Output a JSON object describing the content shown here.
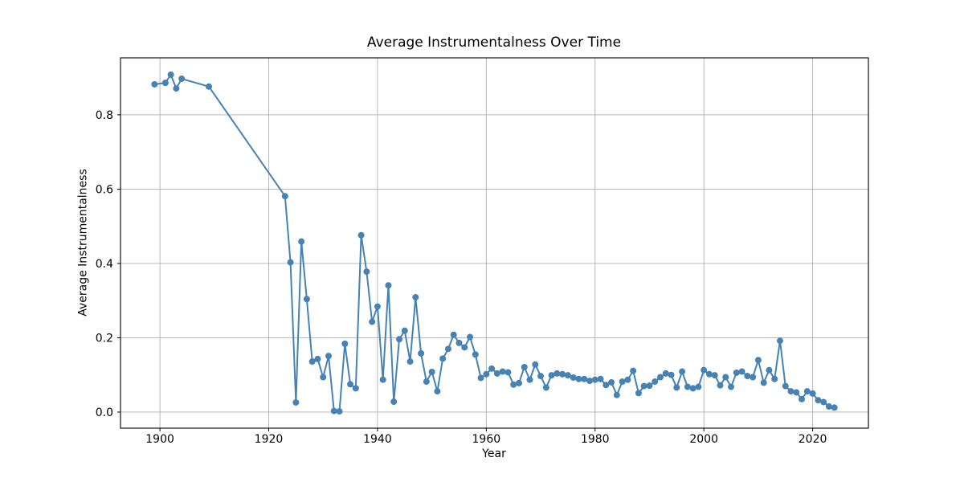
{
  "chart_data": {
    "type": "line",
    "title": "Average Instrumentalness Over Time",
    "xlabel": "Year",
    "ylabel": "Average Instrumentalness",
    "legend": null,
    "grid": true,
    "grid_color": "#b0b0b0",
    "line_color": "#4682b4",
    "marker": "circle",
    "marker_size_px": 8,
    "xlim": [
      1892.75,
      2030.25
    ],
    "ylim": [
      -0.0433,
      0.9533
    ],
    "x_ticks": [
      1900,
      1920,
      1940,
      1960,
      1980,
      2000,
      2020
    ],
    "y_ticks": [
      0.0,
      0.2,
      0.4,
      0.6,
      0.8
    ],
    "series": [
      {
        "name": "Average Instrumentalness",
        "points": [
          [
            1899,
            0.882
          ],
          [
            1901,
            0.886
          ],
          [
            1902,
            0.908
          ],
          [
            1903,
            0.871
          ],
          [
            1904,
            0.897
          ],
          [
            1909,
            0.876
          ],
          [
            1923,
            0.581
          ],
          [
            1924,
            0.403
          ],
          [
            1925,
            0.026
          ],
          [
            1926,
            0.459
          ],
          [
            1927,
            0.304
          ],
          [
            1928,
            0.136
          ],
          [
            1929,
            0.143
          ],
          [
            1930,
            0.094
          ],
          [
            1931,
            0.151
          ],
          [
            1932,
            0.003
          ],
          [
            1933,
            0.002
          ],
          [
            1934,
            0.184
          ],
          [
            1935,
            0.075
          ],
          [
            1936,
            0.064
          ],
          [
            1937,
            0.476
          ],
          [
            1938,
            0.378
          ],
          [
            1939,
            0.243
          ],
          [
            1940,
            0.284
          ],
          [
            1941,
            0.087
          ],
          [
            1942,
            0.341
          ],
          [
            1943,
            0.028
          ],
          [
            1944,
            0.196
          ],
          [
            1945,
            0.219
          ],
          [
            1946,
            0.136
          ],
          [
            1947,
            0.309
          ],
          [
            1948,
            0.158
          ],
          [
            1949,
            0.082
          ],
          [
            1950,
            0.108
          ],
          [
            1951,
            0.056
          ],
          [
            1952,
            0.144
          ],
          [
            1953,
            0.17
          ],
          [
            1954,
            0.208
          ],
          [
            1955,
            0.186
          ],
          [
            1956,
            0.174
          ],
          [
            1957,
            0.202
          ],
          [
            1958,
            0.155
          ],
          [
            1959,
            0.092
          ],
          [
            1960,
            0.102
          ],
          [
            1961,
            0.117
          ],
          [
            1962,
            0.104
          ],
          [
            1963,
            0.109
          ],
          [
            1964,
            0.107
          ],
          [
            1965,
            0.074
          ],
          [
            1966,
            0.078
          ],
          [
            1967,
            0.121
          ],
          [
            1968,
            0.087
          ],
          [
            1969,
            0.128
          ],
          [
            1970,
            0.097
          ],
          [
            1971,
            0.066
          ],
          [
            1972,
            0.099
          ],
          [
            1973,
            0.104
          ],
          [
            1974,
            0.102
          ],
          [
            1975,
            0.099
          ],
          [
            1976,
            0.093
          ],
          [
            1977,
            0.089
          ],
          [
            1978,
            0.089
          ],
          [
            1979,
            0.084
          ],
          [
            1980,
            0.087
          ],
          [
            1981,
            0.089
          ],
          [
            1982,
            0.073
          ],
          [
            1983,
            0.08
          ],
          [
            1984,
            0.046
          ],
          [
            1985,
            0.082
          ],
          [
            1986,
            0.087
          ],
          [
            1987,
            0.111
          ],
          [
            1988,
            0.051
          ],
          [
            1989,
            0.07
          ],
          [
            1990,
            0.071
          ],
          [
            1991,
            0.082
          ],
          [
            1992,
            0.094
          ],
          [
            1993,
            0.104
          ],
          [
            1994,
            0.1
          ],
          [
            1995,
            0.066
          ],
          [
            1996,
            0.109
          ],
          [
            1997,
            0.068
          ],
          [
            1998,
            0.064
          ],
          [
            1999,
            0.068
          ],
          [
            2000,
            0.113
          ],
          [
            2001,
            0.102
          ],
          [
            2002,
            0.099
          ],
          [
            2003,
            0.072
          ],
          [
            2004,
            0.094
          ],
          [
            2005,
            0.068
          ],
          [
            2006,
            0.106
          ],
          [
            2007,
            0.109
          ],
          [
            2008,
            0.097
          ],
          [
            2009,
            0.094
          ],
          [
            2010,
            0.14
          ],
          [
            2011,
            0.079
          ],
          [
            2012,
            0.113
          ],
          [
            2013,
            0.089
          ],
          [
            2014,
            0.192
          ],
          [
            2015,
            0.07
          ],
          [
            2016,
            0.056
          ],
          [
            2017,
            0.053
          ],
          [
            2018,
            0.035
          ],
          [
            2019,
            0.056
          ],
          [
            2020,
            0.05
          ],
          [
            2021,
            0.032
          ],
          [
            2022,
            0.027
          ],
          [
            2023,
            0.015
          ],
          [
            2024,
            0.012
          ]
        ]
      }
    ]
  }
}
